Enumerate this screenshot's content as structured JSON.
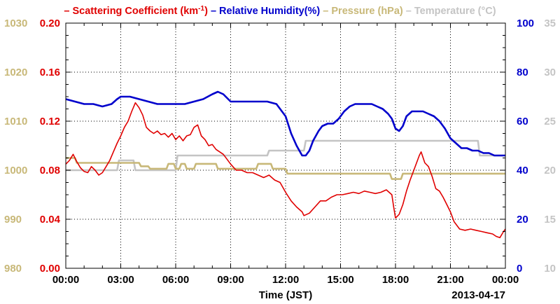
{
  "chart_data": {
    "type": "line",
    "date_label": "2013-04-17",
    "xlabel": "Time (JST)",
    "x_ticks": [
      "00:00",
      "03:00",
      "06:00",
      "09:00",
      "12:00",
      "15:00",
      "18:00",
      "21:00",
      "00:00"
    ],
    "xlim_hours": [
      0,
      24
    ],
    "grid": true,
    "legend": {
      "placement": "top",
      "entries": [
        {
          "dash": "–",
          "text": "Scattering Coefficient (km",
          "sup": "-1",
          "tail": ")",
          "color": "#e00000"
        },
        {
          "dash": "–",
          "text": "Relative Humidity(%)",
          "color": "#0000cc"
        },
        {
          "dash": "–",
          "text": "Pressure (hPa)",
          "color": "#c8b878"
        },
        {
          "dash": "–",
          "text": "Temperature (°C)",
          "color": "#c4c4c4"
        }
      ]
    },
    "axes": {
      "scattering": {
        "side": "left-inner",
        "color": "#e00000",
        "ylim": [
          0,
          0.2
        ],
        "ticks": [
          "0.20",
          "0.16",
          "0.12",
          "0.08",
          "0.04",
          "0.00"
        ]
      },
      "pressure": {
        "side": "left-outer",
        "color": "#c8b878",
        "ylim": [
          980,
          1030
        ],
        "ticks": [
          "1030",
          "1020",
          "1010",
          "1000",
          "990",
          "980"
        ]
      },
      "humidity": {
        "side": "right-inner",
        "color": "#0000cc",
        "ylim": [
          0,
          100
        ],
        "ticks": [
          "100",
          "80",
          "60",
          "40",
          "20",
          "0"
        ]
      },
      "temperature": {
        "side": "right-outer",
        "color": "#c4c4c4",
        "ylim": [
          10,
          35
        ],
        "ticks": [
          "35",
          "30",
          "25",
          "20",
          "15",
          "10"
        ]
      }
    },
    "series": [
      {
        "name": "Scattering Coefficient (km-1)",
        "axis": "scattering",
        "color": "#e00000",
        "x": [
          0,
          0.2,
          0.4,
          0.6,
          0.8,
          1.0,
          1.2,
          1.4,
          1.6,
          1.8,
          2.0,
          2.2,
          2.4,
          2.6,
          2.8,
          3.0,
          3.2,
          3.4,
          3.6,
          3.8,
          4.0,
          4.2,
          4.4,
          4.6,
          4.8,
          5.0,
          5.2,
          5.4,
          5.6,
          5.8,
          6.0,
          6.2,
          6.4,
          6.6,
          6.8,
          7.0,
          7.2,
          7.4,
          7.6,
          7.8,
          8.0,
          8.2,
          8.4,
          8.6,
          8.8,
          9.0,
          9.3,
          9.6,
          9.9,
          10.2,
          10.5,
          10.8,
          11.1,
          11.4,
          11.7,
          12.0,
          12.3,
          12.6,
          12.9,
          13.0,
          13.3,
          13.6,
          13.9,
          14.2,
          14.5,
          14.8,
          15.1,
          15.4,
          15.7,
          16.0,
          16.3,
          16.6,
          16.9,
          17.2,
          17.5,
          17.8,
          17.9,
          18.0,
          18.2,
          18.4,
          18.6,
          18.8,
          19.0,
          19.2,
          19.3,
          19.4,
          19.6,
          19.8,
          20.0,
          20.2,
          20.4,
          20.6,
          20.8,
          21.0,
          21.2,
          21.5,
          21.8,
          22.1,
          22.4,
          22.7,
          23.0,
          23.3,
          23.5,
          23.7,
          23.9,
          24.0
        ],
        "values": [
          0.085,
          0.088,
          0.093,
          0.087,
          0.082,
          0.079,
          0.078,
          0.083,
          0.08,
          0.076,
          0.078,
          0.083,
          0.088,
          0.095,
          0.102,
          0.108,
          0.115,
          0.12,
          0.128,
          0.135,
          0.131,
          0.125,
          0.115,
          0.112,
          0.11,
          0.112,
          0.109,
          0.11,
          0.107,
          0.11,
          0.105,
          0.108,
          0.104,
          0.108,
          0.109,
          0.115,
          0.117,
          0.108,
          0.105,
          0.1,
          0.101,
          0.097,
          0.095,
          0.093,
          0.089,
          0.085,
          0.08,
          0.08,
          0.078,
          0.078,
          0.076,
          0.074,
          0.076,
          0.072,
          0.07,
          0.062,
          0.055,
          0.05,
          0.046,
          0.043,
          0.045,
          0.05,
          0.055,
          0.055,
          0.058,
          0.06,
          0.06,
          0.061,
          0.062,
          0.061,
          0.063,
          0.062,
          0.061,
          0.062,
          0.064,
          0.06,
          0.05,
          0.041,
          0.044,
          0.052,
          0.063,
          0.072,
          0.08,
          0.088,
          0.092,
          0.095,
          0.086,
          0.083,
          0.075,
          0.065,
          0.063,
          0.058,
          0.052,
          0.046,
          0.038,
          0.032,
          0.031,
          0.032,
          0.031,
          0.03,
          0.029,
          0.028,
          0.026,
          0.025,
          0.03,
          0.032
        ]
      },
      {
        "name": "Relative Humidity(%)",
        "axis": "humidity",
        "color": "#0000cc",
        "x": [
          0,
          0.5,
          1.0,
          1.5,
          2.0,
          2.5,
          2.8,
          3.0,
          3.5,
          4.0,
          4.5,
          5.0,
          5.5,
          6.0,
          6.5,
          7.0,
          7.5,
          8.0,
          8.3,
          8.6,
          9.0,
          9.5,
          10.0,
          10.5,
          11.0,
          11.5,
          12.0,
          12.3,
          12.6,
          12.9,
          13.1,
          13.3,
          13.5,
          13.8,
          14.0,
          14.3,
          14.6,
          14.9,
          15.2,
          15.5,
          15.8,
          16.1,
          16.4,
          16.7,
          17.0,
          17.3,
          17.6,
          17.8,
          18.0,
          18.2,
          18.4,
          18.6,
          18.9,
          19.2,
          19.5,
          19.8,
          20.1,
          20.4,
          20.7,
          21.0,
          21.3,
          21.6,
          21.9,
          22.2,
          22.5,
          22.8,
          23.1,
          23.4,
          23.7,
          24.0
        ],
        "values": [
          69,
          68,
          67,
          67,
          66,
          67,
          69,
          70,
          70,
          69,
          68,
          67,
          67,
          67,
          67,
          68,
          69,
          71,
          72,
          71,
          68,
          68,
          68,
          68,
          68,
          67,
          62,
          55,
          50,
          46,
          46,
          48,
          52,
          56,
          58,
          59,
          59,
          61,
          64,
          66,
          67,
          67,
          67,
          67,
          66,
          65,
          63,
          61,
          57,
          56,
          58,
          62,
          64,
          64,
          64,
          63,
          62,
          60,
          57,
          53,
          51,
          49,
          49,
          48,
          48,
          47,
          47,
          46,
          46,
          46
        ]
      },
      {
        "name": "Pressure (hPa)",
        "axis": "pressure",
        "color": "#c8b878",
        "x": [
          0,
          0.5,
          0.6,
          4.0,
          4.1,
          4.5,
          4.6,
          5.5,
          5.6,
          5.9,
          6.0,
          6.2,
          6.3,
          6.5,
          6.6,
          7.0,
          7.1,
          8.2,
          8.3,
          8.7,
          8.8,
          10.4,
          10.5,
          11.2,
          11.3,
          12.0,
          12.1,
          14.9,
          15.0,
          17.0,
          17.1,
          17.7,
          17.8,
          18.1,
          18.2,
          18.3,
          18.4,
          18.8,
          18.9,
          24.0
        ],
        "values": [
          1002.5,
          1002.5,
          1001.5,
          1001.5,
          1000.8,
          1000.8,
          1000.3,
          1000.3,
          1001.3,
          1001.3,
          1000.3,
          1000.3,
          1001.3,
          1001.3,
          1000.3,
          1000.3,
          1001.3,
          1001.3,
          1000.3,
          1000.3,
          1000.3,
          1000.3,
          1001.3,
          1001.3,
          1000.3,
          1000.3,
          999.3,
          999.3,
          999.3,
          999.3,
          999.3,
          999.3,
          998.2,
          998.2,
          998.2,
          998.2,
          999.3,
          999.3,
          999.3,
          999.3
        ]
      },
      {
        "name": "Temperature (°C)",
        "axis": "temperature",
        "color": "#c4c4c4",
        "x": [
          0,
          2.8,
          2.9,
          3.7,
          3.8,
          6.0,
          6.1,
          11.0,
          11.1,
          13.0,
          13.1,
          22.5,
          22.6,
          24.0
        ],
        "values": [
          20.0,
          20.0,
          21.0,
          21.0,
          20.0,
          20.0,
          21.5,
          21.5,
          22.0,
          22.0,
          23.0,
          23.0,
          21.5,
          21.5
        ]
      }
    ]
  }
}
